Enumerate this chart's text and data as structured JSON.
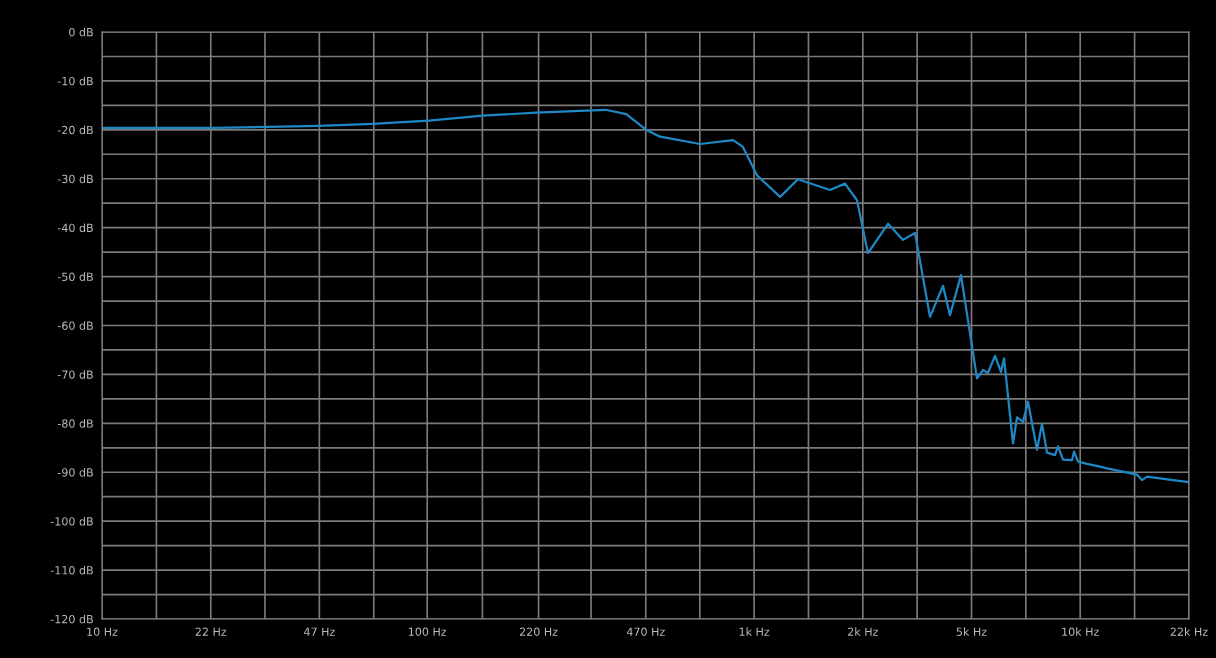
{
  "chart_data": {
    "type": "line",
    "log": "x",
    "grid": true,
    "marker": "none",
    "line_style": "solid",
    "xlim": [
      10,
      22000
    ],
    "ylim": [
      -120,
      0
    ],
    "xticks": [
      {
        "value": 10,
        "label": "10 Hz"
      },
      {
        "value": 14.7,
        "label": null
      },
      {
        "value": 21.6,
        "label": "22 Hz"
      },
      {
        "value": 31.7,
        "label": null
      },
      {
        "value": 46.6,
        "label": "47 Hz"
      },
      {
        "value": 68.5,
        "label": null
      },
      {
        "value": 100,
        "label": "100 Hz"
      },
      {
        "value": 147.8,
        "label": null
      },
      {
        "value": 220,
        "label": "220 Hz"
      },
      {
        "value": 319,
        "label": null
      },
      {
        "value": 470,
        "label": "470 Hz"
      },
      {
        "value": 689,
        "label": null
      },
      {
        "value": 1012,
        "label": "1k Hz"
      },
      {
        "value": 1487,
        "label": null
      },
      {
        "value": 2185,
        "label": "2k Hz"
      },
      {
        "value": 3210,
        "label": null
      },
      {
        "value": 4717,
        "label": "5k Hz"
      },
      {
        "value": 6930,
        "label": null
      },
      {
        "value": 10183,
        "label": "10k Hz"
      },
      {
        "value": 14967,
        "label": null
      },
      {
        "value": 22000,
        "label": "22k Hz"
      }
    ],
    "yticks": [
      {
        "value": -120,
        "label": "-120 dB"
      },
      {
        "value": -115,
        "label": null
      },
      {
        "value": -110,
        "label": "-110 dB"
      },
      {
        "value": -105,
        "label": null
      },
      {
        "value": -100,
        "label": "-100 dB"
      },
      {
        "value": -95,
        "label": null
      },
      {
        "value": -90,
        "label": "-90 dB"
      },
      {
        "value": -85,
        "label": null
      },
      {
        "value": -80,
        "label": "-80 dB"
      },
      {
        "value": -75,
        "label": null
      },
      {
        "value": -70,
        "label": "-70 dB"
      },
      {
        "value": -65,
        "label": null
      },
      {
        "value": -60,
        "label": "-60 dB"
      },
      {
        "value": -55,
        "label": null
      },
      {
        "value": -50,
        "label": "-50 dB"
      },
      {
        "value": -45,
        "label": null
      },
      {
        "value": -40,
        "label": "-40 dB"
      },
      {
        "value": -35,
        "label": null
      },
      {
        "value": -30,
        "label": "-30 dB"
      },
      {
        "value": -25,
        "label": null
      },
      {
        "value": -20,
        "label": "-20 dB"
      },
      {
        "value": -15,
        "label": null
      },
      {
        "value": -10,
        "label": "-10 dB"
      },
      {
        "value": -5,
        "label": null
      },
      {
        "value": 0,
        "label": "0 dB"
      }
    ],
    "series": [
      {
        "color": "#1f88c4",
        "x": [
          10,
          22,
          46.5,
          67.6,
          101.3,
          148.4,
          216,
          323,
          354,
          409,
          474,
          520,
          690,
          872,
          935,
          1033,
          1216,
          1381,
          1732,
          1926,
          2097,
          2266,
          2612,
          2904,
          3162,
          3516,
          3855,
          4050,
          4378,
          4904,
          5117,
          5301,
          5570,
          5812,
          5938,
          6328,
          6510,
          6792,
          7037,
          7500,
          7771,
          8052,
          8519,
          8702,
          9016,
          9610,
          9747,
          10025,
          10686,
          11633,
          12310,
          15225,
          15775,
          16345,
          19646,
          22000
        ],
        "values": [
          -19.6,
          -19.6,
          -19.2,
          -18.8,
          -18.1,
          -17.1,
          -16.5,
          -16.0,
          -15.9,
          -16.8,
          -20.1,
          -21.4,
          -22.9,
          -22.1,
          -23.5,
          -29.3,
          -33.7,
          -30.1,
          -32.3,
          -31.0,
          -34.4,
          -45.2,
          -39.2,
          -42.5,
          -41.1,
          -58.2,
          -51.9,
          -57.9,
          -49.7,
          -70.8,
          -69.1,
          -69.7,
          -66.2,
          -69.5,
          -66.7,
          -84.1,
          -78.8,
          -79.7,
          -75.6,
          -85.4,
          -80.1,
          -86.0,
          -86.5,
          -84.7,
          -87.4,
          -87.5,
          -85.8,
          -87.8,
          -88.3,
          -88.8,
          -89.2,
          -90.5,
          -91.6,
          -90.9,
          -91.6,
          -92.0
        ]
      }
    ]
  }
}
